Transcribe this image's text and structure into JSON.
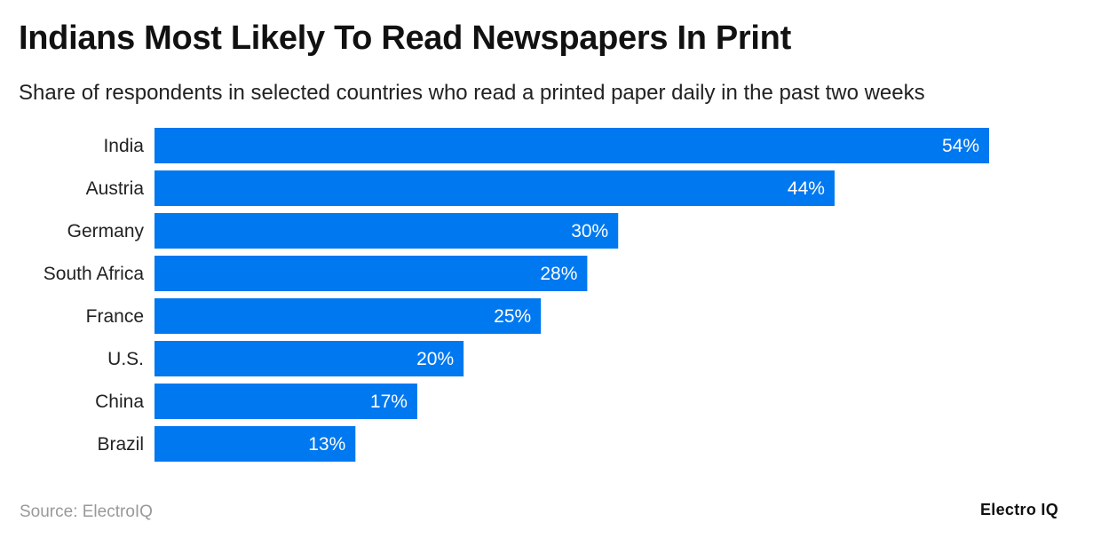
{
  "title": "Indians Most Likely To Read Newspapers In Print",
  "subtitle": "Share of respondents in selected countries who read a printed paper daily in the past two weeks",
  "source": "Source: ElectroIQ",
  "logo": "Electro IQ",
  "colors": {
    "bar": "#0078F0"
  },
  "chart_data": {
    "type": "bar",
    "orientation": "horizontal",
    "categories": [
      "India",
      "Austria",
      "Germany",
      "South Africa",
      "France",
      "U.S.",
      "China",
      "Brazil"
    ],
    "values": [
      54,
      44,
      30,
      28,
      25,
      20,
      17,
      13
    ],
    "value_labels": [
      "54%",
      "44%",
      "30%",
      "28%",
      "25%",
      "20%",
      "17%",
      "13%"
    ],
    "unit": "%",
    "xlim": [
      0,
      54
    ],
    "grid": false
  }
}
